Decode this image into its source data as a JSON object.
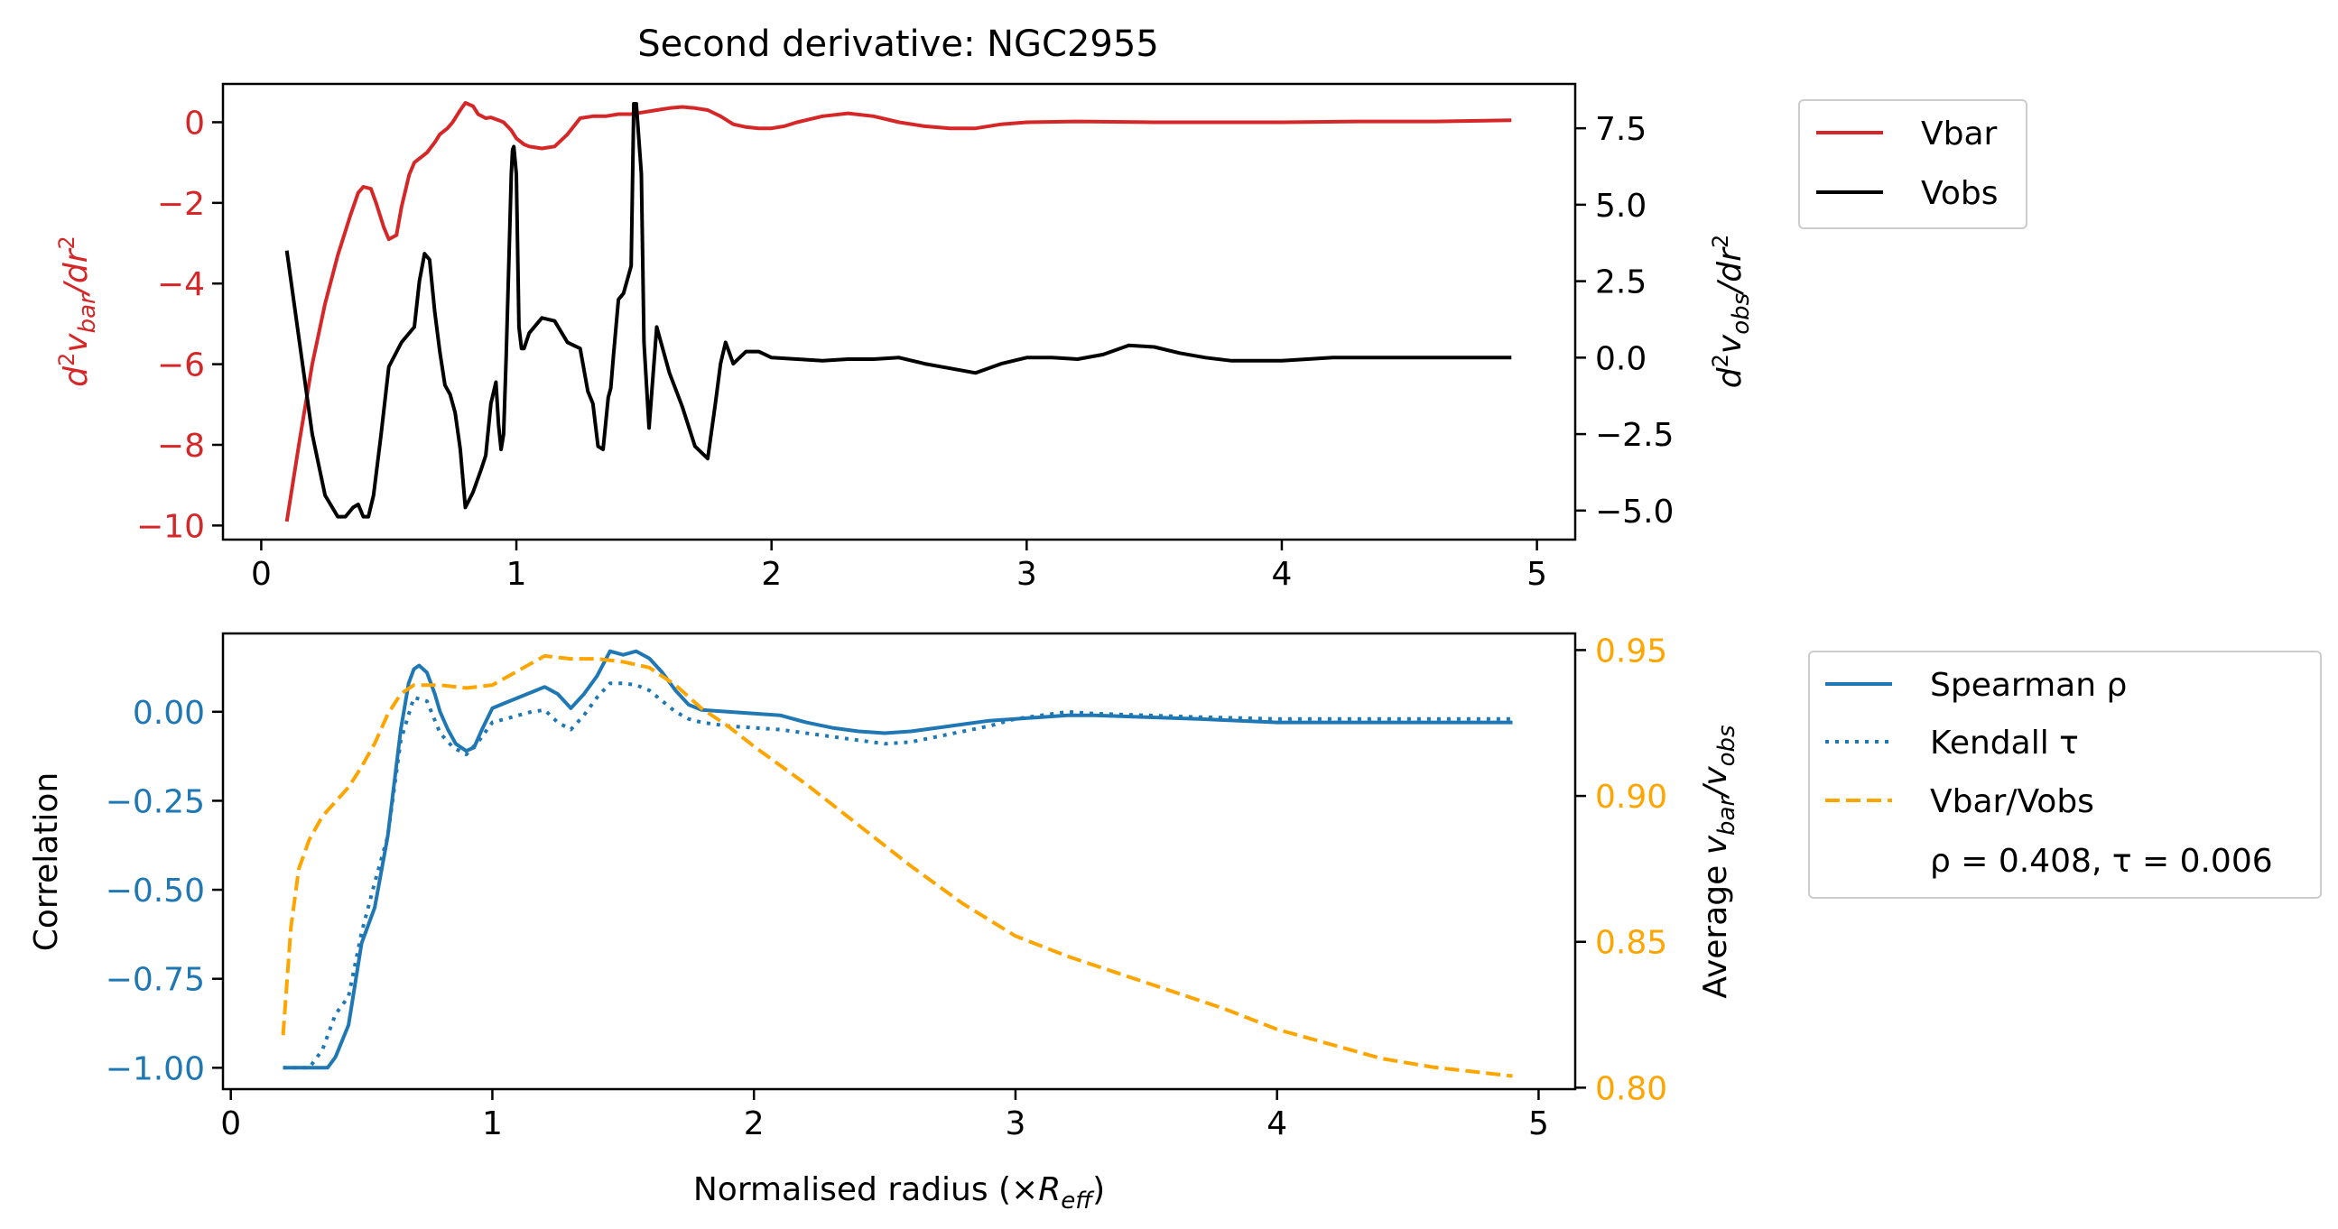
{
  "title": "Second derivative: NGC2955",
  "colors": {
    "vbar": "#d62728",
    "vobs": "#000000",
    "spearman": "#1f77b4",
    "ratio": "#ffa500"
  },
  "chart_data": [
    {
      "type": "line",
      "title": "Second derivative: NGC2955",
      "xlabel": "",
      "ylabel_left": "d²v_bar/dr²",
      "ylabel_right": "d²v_obs/dr²",
      "xlim": [
        -0.15,
        5.15
      ],
      "ylim_left": [
        -10.35,
        0.95
      ],
      "ylim_right": [
        -5.95,
        8.95
      ],
      "xticks": [
        0,
        1,
        2,
        3,
        4,
        5
      ],
      "yticks_left": [
        0,
        -2,
        -4,
        -6,
        -8,
        -10
      ],
      "yticks_right": [
        7.5,
        5.0,
        2.5,
        0.0,
        -2.5,
        -5.0
      ],
      "legend": {
        "placement": "outside-right-top",
        "entries": [
          "Vbar",
          "Vobs"
        ]
      },
      "series": [
        {
          "name": "Vbar",
          "axis": "left",
          "x": [
            0.1,
            0.15,
            0.2,
            0.25,
            0.3,
            0.35,
            0.38,
            0.4,
            0.43,
            0.45,
            0.48,
            0.5,
            0.53,
            0.55,
            0.58,
            0.6,
            0.63,
            0.65,
            0.68,
            0.7,
            0.73,
            0.75,
            0.78,
            0.8,
            0.83,
            0.85,
            0.88,
            0.9,
            0.93,
            0.95,
            0.98,
            1.0,
            1.03,
            1.05,
            1.1,
            1.15,
            1.2,
            1.25,
            1.3,
            1.35,
            1.4,
            1.45,
            1.5,
            1.55,
            1.6,
            1.65,
            1.7,
            1.75,
            1.8,
            1.85,
            1.9,
            1.95,
            2.0,
            2.05,
            2.1,
            2.2,
            2.3,
            2.4,
            2.5,
            2.6,
            2.7,
            2.8,
            2.9,
            3.0,
            3.2,
            3.5,
            3.8,
            4.0,
            4.3,
            4.6,
            4.9
          ],
          "values": [
            -9.9,
            -7.9,
            -6.0,
            -4.5,
            -3.3,
            -2.3,
            -1.75,
            -1.6,
            -1.65,
            -2.0,
            -2.6,
            -2.9,
            -2.8,
            -2.1,
            -1.3,
            -1.0,
            -0.85,
            -0.75,
            -0.5,
            -0.3,
            -0.15,
            0.0,
            0.3,
            0.48,
            0.4,
            0.2,
            0.1,
            0.12,
            0.05,
            0.0,
            -0.2,
            -0.4,
            -0.55,
            -0.6,
            -0.65,
            -0.6,
            -0.3,
            0.1,
            0.15,
            0.15,
            0.2,
            0.2,
            0.25,
            0.3,
            0.35,
            0.38,
            0.35,
            0.3,
            0.15,
            -0.05,
            -0.12,
            -0.15,
            -0.15,
            -0.1,
            0.0,
            0.15,
            0.22,
            0.15,
            0.0,
            -0.1,
            -0.15,
            -0.15,
            -0.05,
            0.0,
            0.02,
            0.0,
            0.0,
            0.0,
            0.02,
            0.02,
            0.05
          ]
        },
        {
          "name": "Vobs",
          "axis": "right",
          "x": [
            0.1,
            0.15,
            0.2,
            0.25,
            0.3,
            0.33,
            0.36,
            0.38,
            0.4,
            0.42,
            0.44,
            0.47,
            0.5,
            0.55,
            0.6,
            0.62,
            0.64,
            0.66,
            0.68,
            0.7,
            0.72,
            0.74,
            0.76,
            0.78,
            0.8,
            0.83,
            0.86,
            0.88,
            0.9,
            0.92,
            0.93,
            0.94,
            0.95,
            0.96,
            0.97,
            0.98,
            0.985,
            0.99,
            1.0,
            1.01,
            1.02,
            1.03,
            1.05,
            1.1,
            1.15,
            1.2,
            1.25,
            1.28,
            1.3,
            1.32,
            1.34,
            1.36,
            1.37,
            1.38,
            1.4,
            1.42,
            1.44,
            1.45,
            1.46,
            1.47,
            1.49,
            1.5,
            1.52,
            1.55,
            1.6,
            1.65,
            1.7,
            1.75,
            1.78,
            1.8,
            1.82,
            1.85,
            1.9,
            1.95,
            2.0,
            2.1,
            2.2,
            2.3,
            2.4,
            2.5,
            2.6,
            2.7,
            2.8,
            2.9,
            3.0,
            3.1,
            3.2,
            3.3,
            3.4,
            3.5,
            3.6,
            3.7,
            3.8,
            4.0,
            4.2,
            4.5,
            4.9
          ],
          "values": [
            3.5,
            0.5,
            -2.5,
            -4.5,
            -5.2,
            -5.2,
            -4.9,
            -4.8,
            -5.2,
            -5.2,
            -4.5,
            -2.5,
            -0.3,
            0.5,
            1.0,
            2.5,
            3.4,
            3.2,
            1.5,
            0.2,
            -0.9,
            -1.2,
            -1.8,
            -3.0,
            -4.9,
            -4.4,
            -3.7,
            -3.2,
            -1.5,
            -0.8,
            -2.2,
            -3.0,
            -2.5,
            0.0,
            3.0,
            6.0,
            6.8,
            6.9,
            6.0,
            1.0,
            0.3,
            0.3,
            0.8,
            1.3,
            1.2,
            0.5,
            0.3,
            -1.1,
            -1.5,
            -2.9,
            -3.0,
            -1.3,
            -1.0,
            0.0,
            1.9,
            2.1,
            2.7,
            3.0,
            8.3,
            8.3,
            6.0,
            0.5,
            -2.3,
            1.0,
            -0.5,
            -1.6,
            -2.9,
            -3.3,
            -1.5,
            -0.2,
            0.5,
            -0.2,
            0.2,
            0.2,
            0.0,
            -0.05,
            -0.1,
            -0.05,
            -0.05,
            0.0,
            -0.2,
            -0.35,
            -0.5,
            -0.2,
            0.0,
            0.0,
            -0.05,
            0.1,
            0.4,
            0.35,
            0.15,
            0.0,
            -0.1,
            -0.1,
            0.0,
            0.0,
            0.0
          ]
        }
      ]
    },
    {
      "type": "line",
      "title": "",
      "xlabel": "Normalised radius (×R_eff)",
      "ylabel_left": "Correlation",
      "ylabel_right": "Average v_bar/v_obs",
      "xlim": [
        -0.03,
        5.14
      ],
      "ylim_left": [
        -1.06,
        0.22
      ],
      "ylim_right": [
        0.7995,
        0.9557
      ],
      "xticks": [
        0,
        1,
        2,
        3,
        4,
        5
      ],
      "yticks_left": [
        0.0,
        -0.25,
        -0.5,
        -0.75,
        -1.0
      ],
      "yticks_left_labels": [
        "0.00",
        "−0.25",
        "−0.50",
        "−0.75",
        "−1.00"
      ],
      "yticks_right": [
        0.95,
        0.9,
        0.85,
        0.8
      ],
      "yticks_right_labels": [
        "0.95",
        "0.90",
        "0.85",
        "0.80"
      ],
      "legend": {
        "placement": "outside-right-top",
        "entries": [
          "Spearman ρ",
          "Kendall τ",
          "Vbar/Vobs"
        ],
        "annotation": "ρ = 0.408, τ = 0.006"
      },
      "series": [
        {
          "name": "Spearman ρ",
          "axis": "left",
          "style": "solid",
          "x": [
            0.2,
            0.3,
            0.37,
            0.4,
            0.45,
            0.5,
            0.55,
            0.6,
            0.65,
            0.68,
            0.7,
            0.72,
            0.75,
            0.78,
            0.8,
            0.83,
            0.86,
            0.9,
            0.93,
            0.96,
            1.0,
            1.05,
            1.1,
            1.15,
            1.2,
            1.25,
            1.3,
            1.35,
            1.4,
            1.45,
            1.5,
            1.55,
            1.6,
            1.65,
            1.7,
            1.75,
            1.8,
            1.9,
            2.0,
            2.1,
            2.2,
            2.3,
            2.4,
            2.5,
            2.6,
            2.7,
            2.8,
            2.9,
            3.0,
            3.1,
            3.2,
            3.3,
            3.5,
            3.7,
            4.0,
            4.3,
            4.6,
            4.9
          ],
          "values": [
            -1.0,
            -1.0,
            -1.0,
            -0.97,
            -0.88,
            -0.65,
            -0.55,
            -0.35,
            -0.05,
            0.08,
            0.12,
            0.13,
            0.11,
            0.05,
            0.0,
            -0.05,
            -0.09,
            -0.11,
            -0.1,
            -0.05,
            0.01,
            0.025,
            0.04,
            0.055,
            0.07,
            0.05,
            0.01,
            0.05,
            0.1,
            0.17,
            0.16,
            0.17,
            0.15,
            0.11,
            0.06,
            0.02,
            0.005,
            0.0,
            -0.005,
            -0.01,
            -0.03,
            -0.045,
            -0.055,
            -0.06,
            -0.055,
            -0.045,
            -0.035,
            -0.025,
            -0.02,
            -0.015,
            -0.01,
            -0.01,
            -0.015,
            -0.02,
            -0.03,
            -0.03,
            -0.03,
            -0.03
          ]
        },
        {
          "name": "Kendall τ",
          "axis": "left",
          "style": "dotted",
          "x": [
            0.2,
            0.3,
            0.35,
            0.4,
            0.45,
            0.5,
            0.55,
            0.6,
            0.65,
            0.7,
            0.75,
            0.8,
            0.85,
            0.9,
            0.95,
            1.0,
            1.05,
            1.1,
            1.15,
            1.2,
            1.25,
            1.3,
            1.35,
            1.4,
            1.45,
            1.5,
            1.55,
            1.6,
            1.65,
            1.7,
            1.75,
            1.8,
            1.9,
            2.0,
            2.1,
            2.2,
            2.3,
            2.4,
            2.5,
            2.6,
            2.7,
            2.8,
            2.9,
            3.0,
            3.1,
            3.2,
            3.3,
            3.5,
            3.7,
            4.0,
            4.3,
            4.6,
            4.9
          ],
          "values": [
            -1.0,
            -1.0,
            -0.95,
            -0.85,
            -0.8,
            -0.62,
            -0.48,
            -0.35,
            -0.08,
            0.04,
            0.03,
            -0.06,
            -0.1,
            -0.12,
            -0.08,
            -0.03,
            -0.02,
            -0.01,
            0.0,
            0.005,
            -0.03,
            -0.05,
            -0.01,
            0.04,
            0.08,
            0.08,
            0.075,
            0.06,
            0.03,
            0.0,
            -0.02,
            -0.03,
            -0.04,
            -0.045,
            -0.05,
            -0.06,
            -0.07,
            -0.08,
            -0.09,
            -0.085,
            -0.07,
            -0.055,
            -0.04,
            -0.02,
            -0.01,
            0.0,
            -0.005,
            -0.01,
            -0.015,
            -0.02,
            -0.02,
            -0.02,
            -0.02
          ]
        },
        {
          "name": "Vbar/Vobs",
          "axis": "right",
          "style": "dashed",
          "x": [
            0.2,
            0.23,
            0.26,
            0.3,
            0.35,
            0.4,
            0.45,
            0.5,
            0.55,
            0.6,
            0.65,
            0.7,
            0.8,
            0.9,
            1.0,
            1.1,
            1.2,
            1.3,
            1.4,
            1.5,
            1.6,
            1.7,
            1.8,
            1.9,
            2.0,
            2.2,
            2.4,
            2.6,
            2.8,
            3.0,
            3.2,
            3.4,
            3.6,
            3.8,
            4.0,
            4.2,
            4.4,
            4.6,
            4.8,
            4.9
          ],
          "values": [
            0.818,
            0.855,
            0.875,
            0.885,
            0.893,
            0.898,
            0.903,
            0.91,
            0.918,
            0.928,
            0.935,
            0.938,
            0.938,
            0.937,
            0.938,
            0.943,
            0.948,
            0.947,
            0.947,
            0.946,
            0.944,
            0.938,
            0.93,
            0.924,
            0.917,
            0.904,
            0.89,
            0.876,
            0.863,
            0.852,
            0.845,
            0.839,
            0.833,
            0.827,
            0.82,
            0.815,
            0.81,
            0.807,
            0.805,
            0.804
          ]
        }
      ]
    }
  ]
}
